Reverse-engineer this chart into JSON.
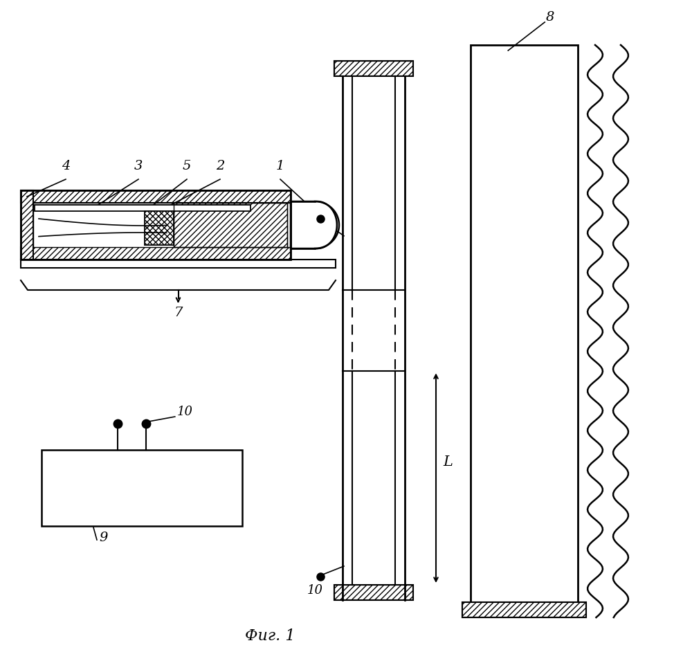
{
  "bg_color": "#ffffff",
  "line_color": "#000000",
  "title": "Фиг. 1"
}
